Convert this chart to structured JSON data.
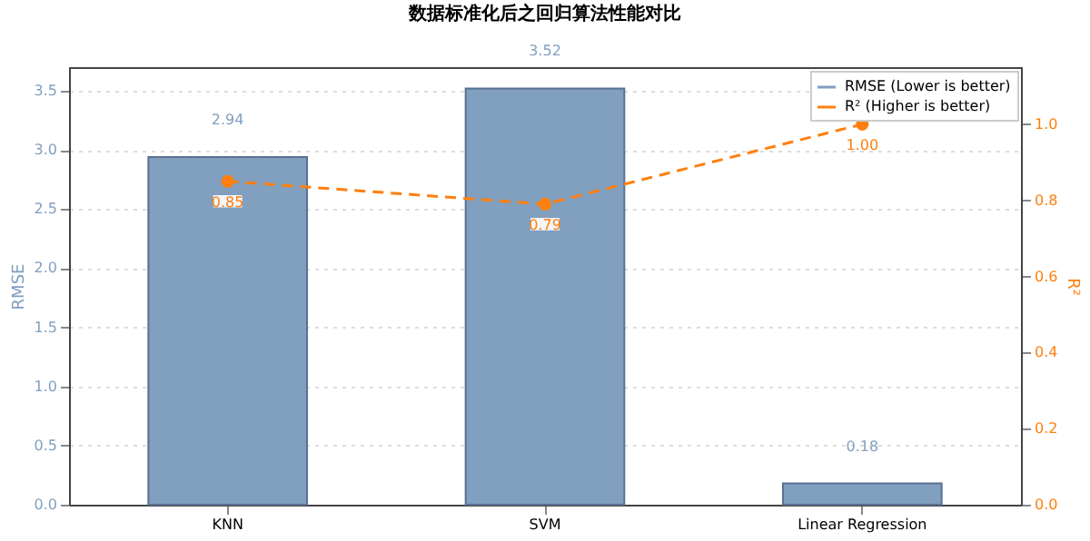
{
  "chart_data": {
    "type": "bar",
    "title": "数据标准化后之回归算法性能对比",
    "categories": [
      "KNN",
      "SVM",
      "Linear Regression"
    ],
    "series": [
      {
        "name": "RMSE (Lower is better)",
        "color": "#819fbf",
        "values": [
          2.94,
          3.52,
          0.18
        ],
        "value_labels": [
          "2.94",
          "3.52",
          "0.18"
        ]
      },
      {
        "name": "R² (Higher is better)",
        "type": "line",
        "axis": "y2",
        "color": "#ff7f0e",
        "values": [
          0.85,
          0.79,
          1.0
        ],
        "value_labels": [
          "0.85",
          "0.79",
          "1.00"
        ],
        "marker": "circle",
        "line_style": "dashed"
      }
    ],
    "ylabel": "RMSE",
    "y2label": "R²",
    "ylim": [
      0,
      3.7
    ],
    "yticks": [
      {
        "value": 0,
        "label": "0.0"
      },
      0.5,
      {
        "value": 1,
        "label": "1.0"
      },
      1.5,
      {
        "value": 2,
        "label": "2.0"
      },
      2.5,
      {
        "value": 3,
        "label": "3.0"
      },
      3.5
    ],
    "y2lim": [
      0,
      1.15
    ],
    "y2ticks": [
      {
        "value": 0,
        "label": "0.0"
      },
      0.2,
      0.4,
      0.6,
      0.8,
      {
        "value": 1,
        "label": "1.0"
      }
    ],
    "data_labels": true,
    "grid": "y",
    "legend": "top right"
  }
}
